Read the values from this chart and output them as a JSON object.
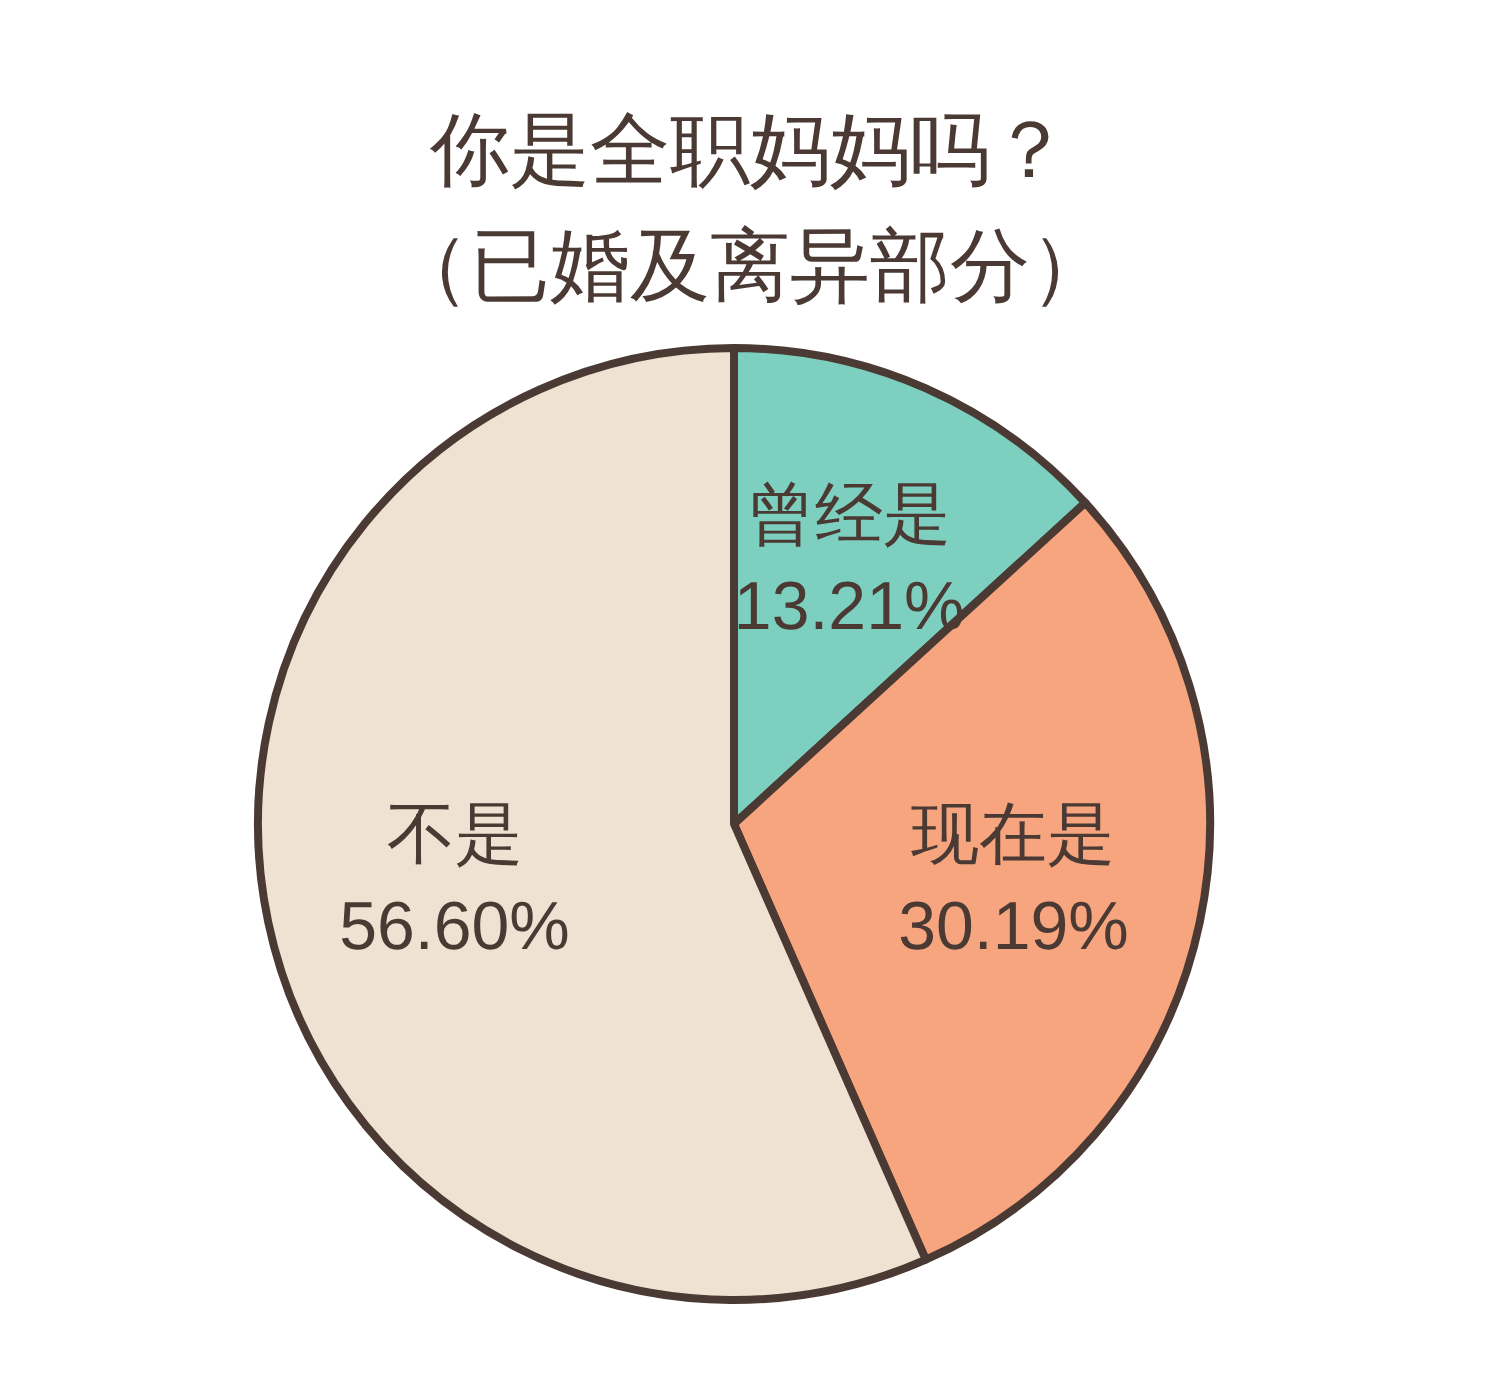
{
  "chart_data": {
    "type": "pie",
    "title": "你是全职妈妈吗？",
    "subtitle": "（已婚及离异部分）",
    "categories": [
      "曾经是",
      "现在是",
      "不是"
    ],
    "values": [
      13.21,
      30.19,
      56.6
    ],
    "value_labels": [
      "13.21%",
      "30.19%",
      "56.60%"
    ],
    "colors": [
      "#7dcfbf",
      "#f6a57f",
      "#efe2d3"
    ],
    "legend": false
  }
}
